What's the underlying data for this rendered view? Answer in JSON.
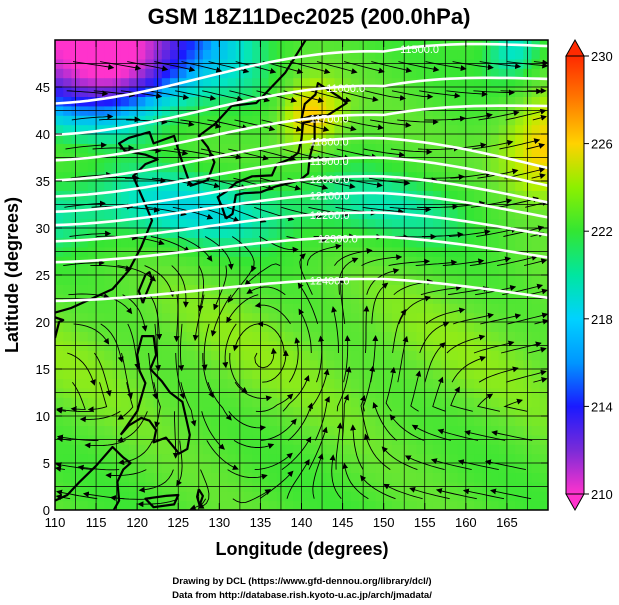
{
  "chart_data": {
    "type": "heatmap",
    "title": "GSM 18Z11Dec2025 (200.0hPa)",
    "xlabel": "Longitude (degrees)",
    "ylabel": "Latitude  (degrees)",
    "xlim": [
      110,
      170
    ],
    "ylim": [
      0,
      50
    ],
    "x_ticks": [
      110,
      115,
      120,
      125,
      130,
      135,
      140,
      145,
      150,
      155,
      160,
      165
    ],
    "y_ticks": [
      0,
      5,
      10,
      15,
      20,
      25,
      30,
      35,
      40,
      45
    ],
    "grid": true,
    "shaded_field": {
      "description_units": "temperature (K)",
      "colorbar_ticks": [
        210,
        214,
        218,
        222,
        226,
        230
      ],
      "colorbar_range": [
        210,
        230
      ],
      "colors_low_to_high": [
        "#ff33cc",
        "#7a2bd8",
        "#1a1aff",
        "#00b4ff",
        "#00e6c8",
        "#33e633",
        "#66e633",
        "#b4f000",
        "#ffd200",
        "#ff7a00",
        "#ff2a00"
      ]
    },
    "contours": {
      "field": "geopotential height (m)",
      "levels": [
        11500,
        11600,
        11700,
        11800,
        11900,
        12000,
        12100,
        12200,
        12300,
        12400
      ],
      "labels_shown": [
        "11500.0",
        "11600.0",
        "11700.0",
        "11800.0",
        "11900.0",
        "12000.0",
        "12100.0",
        "12200.0",
        "12300.0",
        "12400.0"
      ],
      "color": "#ffffff"
    },
    "vectors": {
      "type": "streamlines",
      "color": "#000000"
    }
  },
  "credits": {
    "line1": "Drawing by DCL (https://www.gfd-dennou.org/library/dcl/)",
    "line2": "Data from http://database.rish.kyoto-u.ac.jp/arch/jmadata/"
  }
}
